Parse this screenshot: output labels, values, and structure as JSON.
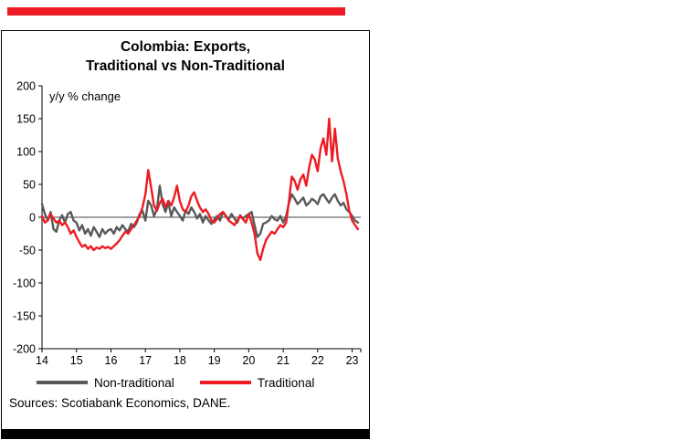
{
  "colors": {
    "accent_bar": "#ed1c24",
    "bottom_bar": "#000000",
    "nontraditional_line": "#595959",
    "traditional_line": "#ed1c24"
  },
  "chart_data": {
    "type": "line",
    "title": "Colombia: Exports, Traditional vs Non-Traditional",
    "title_line1": "Colombia: Exports,",
    "title_line2": "Traditional vs Non-Traditional",
    "annotation": "y/y % change",
    "source": "Sources: Scotiabank Economics, DANE.",
    "ylim": [
      -200,
      200
    ],
    "yticks": [
      200,
      150,
      100,
      50,
      0,
      -50,
      -100,
      -150,
      -200
    ],
    "xticks": [
      14,
      15,
      16,
      17,
      18,
      19,
      20,
      21,
      22,
      23
    ],
    "x_start": 2014,
    "x_end": 2023.25,
    "legend_position": "bottom",
    "grid": false,
    "series": [
      {
        "name": "Non-traditional",
        "color": "#595959",
        "values": [
          20,
          5,
          -5,
          8,
          -18,
          -22,
          -5,
          3,
          -8,
          5,
          8,
          -5,
          -8,
          -20,
          -12,
          -25,
          -18,
          -28,
          -15,
          -22,
          -30,
          -18,
          -25,
          -20,
          -18,
          -25,
          -15,
          -20,
          -12,
          -18,
          -22,
          -10,
          -15,
          -8,
          5,
          10,
          -5,
          25,
          18,
          2,
          12,
          48,
          20,
          8,
          22,
          2,
          15,
          8,
          2,
          -5,
          10,
          5,
          15,
          8,
          -2,
          5,
          -8,
          2,
          -5,
          -10,
          -3,
          2,
          -5,
          8,
          2,
          -3,
          5,
          -2,
          -8,
          3,
          -2,
          2,
          5,
          8,
          -12,
          -30,
          -25,
          -10,
          -8,
          -5,
          2,
          -3,
          -5,
          2,
          -8,
          2,
          22,
          35,
          28,
          20,
          25,
          30,
          18,
          22,
          28,
          25,
          20,
          32,
          35,
          28,
          22,
          30,
          35,
          25,
          18,
          22,
          12,
          8,
          2,
          -5,
          -8
        ]
      },
      {
        "name": "Traditional",
        "color": "#ed1c24",
        "values": [
          2,
          -8,
          -5,
          5,
          -2,
          -8,
          -5,
          -12,
          -8,
          -15,
          -25,
          -20,
          -30,
          -38,
          -45,
          -42,
          -48,
          -44,
          -50,
          -46,
          -48,
          -44,
          -47,
          -45,
          -48,
          -44,
          -40,
          -35,
          -28,
          -22,
          -25,
          -18,
          -12,
          -5,
          2,
          15,
          35,
          72,
          45,
          18,
          10,
          22,
          28,
          15,
          25,
          18,
          30,
          48,
          25,
          12,
          8,
          18,
          32,
          38,
          25,
          15,
          8,
          12,
          5,
          -5,
          -8,
          -2,
          5,
          8,
          2,
          -5,
          -8,
          -12,
          -5,
          2,
          -3,
          -8,
          5,
          -8,
          -25,
          -55,
          -65,
          -48,
          -35,
          -28,
          -22,
          -25,
          -18,
          -12,
          -15,
          -8,
          25,
          62,
          55,
          42,
          58,
          65,
          48,
          75,
          95,
          88,
          70,
          105,
          120,
          95,
          150,
          85,
          135,
          90,
          70,
          55,
          35,
          10,
          -5,
          -12,
          -18
        ]
      }
    ]
  }
}
